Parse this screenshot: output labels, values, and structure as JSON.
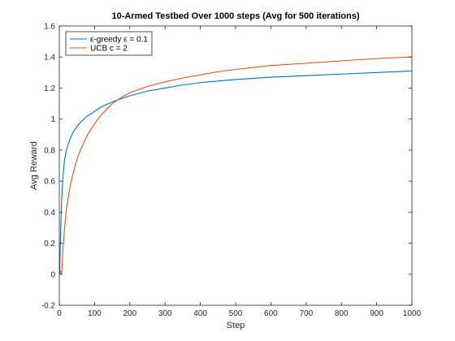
{
  "chart_data": {
    "type": "line",
    "title": "10-Armed Testbed Over 1000 steps (Avg for 500 iterations)",
    "xlabel": "Step",
    "ylabel": "Avg Reward",
    "xlim": [
      0,
      1000
    ],
    "ylim": [
      -0.2,
      1.6
    ],
    "xticks": [
      0,
      100,
      200,
      300,
      400,
      500,
      600,
      700,
      800,
      900,
      1000
    ],
    "yticks": [
      -0.2,
      0,
      0.2,
      0.4,
      0.6,
      0.8,
      1,
      1.2,
      1.4,
      1.6
    ],
    "ytick_labels": [
      "-0.2",
      "0",
      "0.2",
      "0.4",
      "0.6",
      "0.8",
      "1",
      "1.2",
      "1.4",
      "1.6"
    ],
    "grid": false,
    "legend_position": "top-left",
    "series": [
      {
        "name": "ε-greedy ε = 0.1",
        "color": "#0072BD",
        "x": [
          1,
          3,
          6,
          10,
          15,
          20,
          30,
          40,
          50,
          60,
          80,
          100,
          120,
          150,
          180,
          200,
          250,
          300,
          350,
          400,
          450,
          500,
          600,
          700,
          800,
          900,
          1000
        ],
        "y": [
          0.0,
          0.2,
          0.45,
          0.62,
          0.74,
          0.8,
          0.87,
          0.92,
          0.95,
          0.98,
          1.02,
          1.05,
          1.08,
          1.11,
          1.135,
          1.15,
          1.18,
          1.2,
          1.22,
          1.235,
          1.245,
          1.255,
          1.27,
          1.28,
          1.29,
          1.3,
          1.31
        ]
      },
      {
        "name": "UCB c = 2",
        "color": "#D95319",
        "x": [
          1,
          3,
          6,
          8,
          10,
          15,
          20,
          30,
          40,
          50,
          60,
          80,
          100,
          120,
          150,
          180,
          200,
          250,
          300,
          350,
          400,
          450,
          500,
          600,
          700,
          800,
          900,
          1000
        ],
        "y": [
          0.03,
          0.02,
          0.0,
          0.05,
          0.15,
          0.3,
          0.42,
          0.56,
          0.66,
          0.74,
          0.8,
          0.9,
          0.97,
          1.03,
          1.1,
          1.145,
          1.17,
          1.21,
          1.24,
          1.265,
          1.285,
          1.305,
          1.32,
          1.345,
          1.36,
          1.375,
          1.39,
          1.4
        ]
      }
    ]
  }
}
